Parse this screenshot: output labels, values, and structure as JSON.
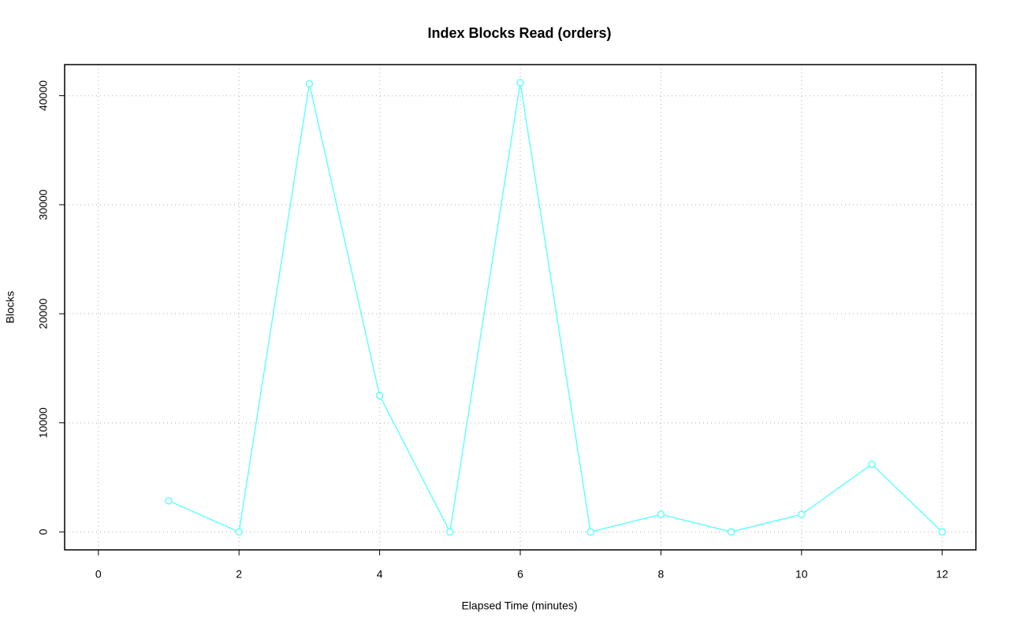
{
  "chart_data": {
    "type": "line",
    "title": "Index Blocks Read (orders)",
    "x_label": "Elapsed Time (minutes)",
    "y_label": "Blocks",
    "x": [
      1,
      2,
      3,
      4,
      5,
      6,
      7,
      8,
      9,
      10,
      11,
      12
    ],
    "values": [
      2850,
      0,
      41100,
      12500,
      0,
      41200,
      0,
      1600,
      0,
      1600,
      6200,
      0
    ],
    "color": "#66ffff",
    "xlim": [
      -0.48,
      12.48
    ],
    "xticks": [
      0,
      2,
      4,
      6,
      8,
      10,
      12
    ],
    "ylim": [
      -1650,
      42850
    ],
    "yticks": [
      0,
      10000,
      20000,
      30000,
      40000
    ],
    "grid": true
  }
}
